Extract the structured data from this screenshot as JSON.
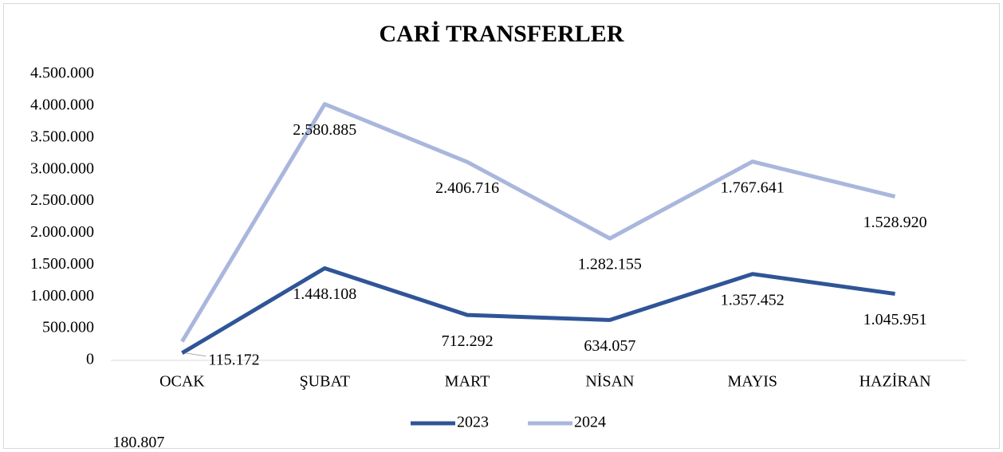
{
  "chart_data": {
    "type": "line",
    "stacked": true,
    "title": "CARİ TRANSFERLER",
    "categories": [
      "OCAK",
      "ŞUBAT",
      "MART",
      "NİSAN",
      "MAYIS",
      "HAZİRAN"
    ],
    "series": [
      {
        "name": "2023",
        "color": "#2f5597",
        "values": [
          115172,
          1448108,
          712292,
          634057,
          1357452,
          1045951
        ],
        "value_labels": [
          "115.172",
          "1.448.108",
          "712.292",
          "634.057",
          "1.357.452",
          "1.045.951"
        ]
      },
      {
        "name": "2024",
        "color": "#a9b7dc",
        "values": [
          180807,
          2580885,
          2406716,
          1282155,
          1767641,
          1528920
        ],
        "value_labels": [
          "180.807",
          "2.580.885",
          "2.406.716",
          "1.282.155",
          "1.767.641",
          "1.528.920"
        ]
      }
    ],
    "ylim": [
      0,
      4500000
    ],
    "yticks": [
      0,
      {
        "value": 500000,
        "label": "500.000"
      },
      {
        "value": 1000000,
        "label": "1.000.000"
      },
      {
        "value": 1500000,
        "label": "1.500.000"
      },
      {
        "value": 2000000,
        "label": "2.000.000"
      },
      {
        "value": 2500000,
        "label": "2.500.000"
      },
      {
        "value": 3000000,
        "label": "3.000.000"
      },
      {
        "value": 3500000,
        "label": "3.500.000"
      },
      {
        "value": 4000000,
        "label": "4.000.000"
      },
      {
        "value": 4500000,
        "label": "4.500.000"
      }
    ],
    "grid": false,
    "legend": "bottom"
  }
}
